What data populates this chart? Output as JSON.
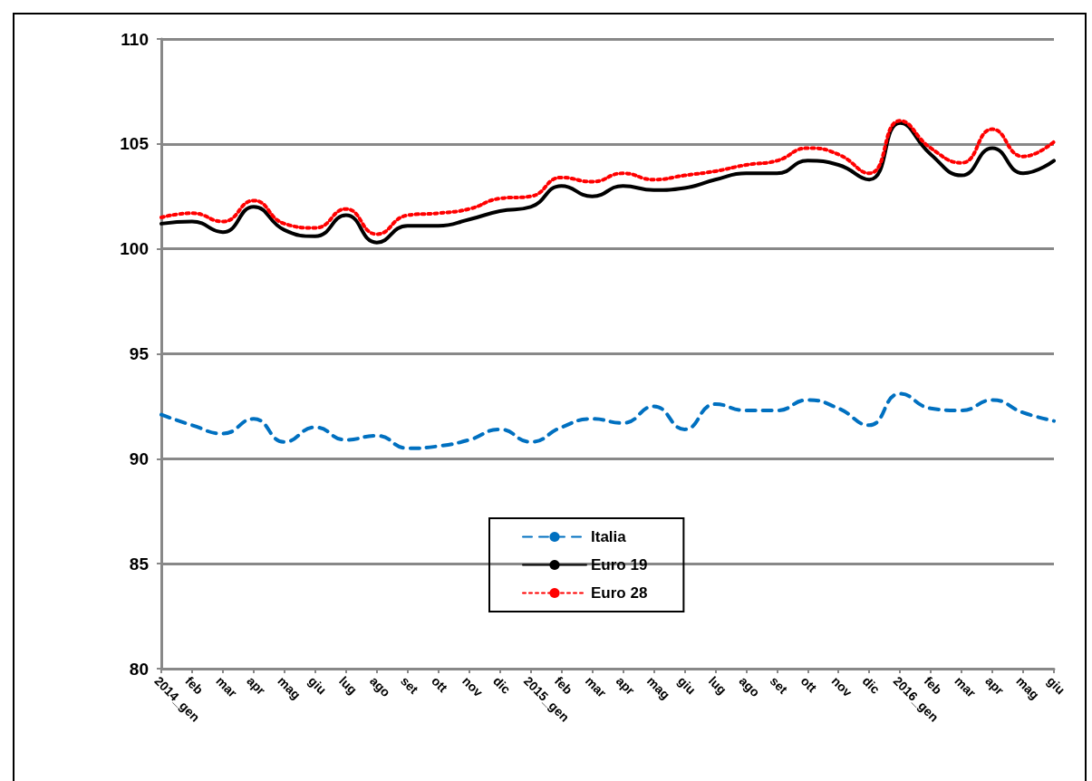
{
  "chart_data": {
    "type": "line",
    "categories": [
      "2014_gen",
      "feb",
      "mar",
      "apr",
      "mag",
      "giu",
      "lug",
      "ago",
      "set",
      "ott",
      "nov",
      "dic",
      "2015_gen",
      "feb",
      "mar",
      "apr",
      "mag",
      "giu",
      "lug",
      "ago",
      "set",
      "ott",
      "nov",
      "dic",
      "2016_gen",
      "feb",
      "mar",
      "apr",
      "mag",
      "giu"
    ],
    "series": [
      {
        "name": "Italia",
        "color": "#0070c0",
        "line_style": "dashed",
        "values": [
          92.1,
          91.6,
          91.2,
          91.9,
          90.8,
          91.5,
          90.9,
          91.1,
          90.5,
          90.6,
          90.9,
          91.4,
          90.8,
          91.5,
          91.9,
          91.7,
          92.5,
          91.4,
          92.6,
          92.3,
          92.3,
          92.8,
          92.4,
          91.6,
          93.1,
          92.4,
          92.3,
          92.8,
          92.2,
          91.8
        ]
      },
      {
        "name": "Euro 19",
        "color": "#000000",
        "line_style": "solid",
        "values": [
          101.2,
          101.3,
          100.8,
          102.0,
          100.9,
          100.6,
          101.6,
          100.3,
          101.1,
          101.1,
          101.4,
          101.8,
          102.0,
          103.0,
          102.5,
          103.0,
          102.8,
          102.9,
          103.3,
          103.6,
          103.6,
          104.2,
          104.0,
          103.3,
          106.0,
          104.5,
          103.5,
          104.8,
          103.6,
          104.2
        ]
      },
      {
        "name": "Euro 28",
        "color": "#ff0000",
        "line_style": "dotted",
        "values": [
          101.5,
          101.7,
          101.3,
          102.3,
          101.2,
          101.0,
          101.9,
          100.7,
          101.6,
          101.7,
          101.9,
          102.4,
          102.5,
          103.4,
          103.2,
          103.6,
          103.3,
          103.5,
          103.7,
          104.0,
          104.2,
          104.8,
          104.5,
          103.6,
          106.1,
          104.8,
          104.1,
          105.7,
          104.4,
          105.1
        ]
      }
    ],
    "ylim": [
      80,
      110
    ],
    "yticks": [
      80,
      85,
      90,
      95,
      100,
      105,
      110
    ],
    "grid": "y",
    "legend": "bottom",
    "marker": "none"
  }
}
